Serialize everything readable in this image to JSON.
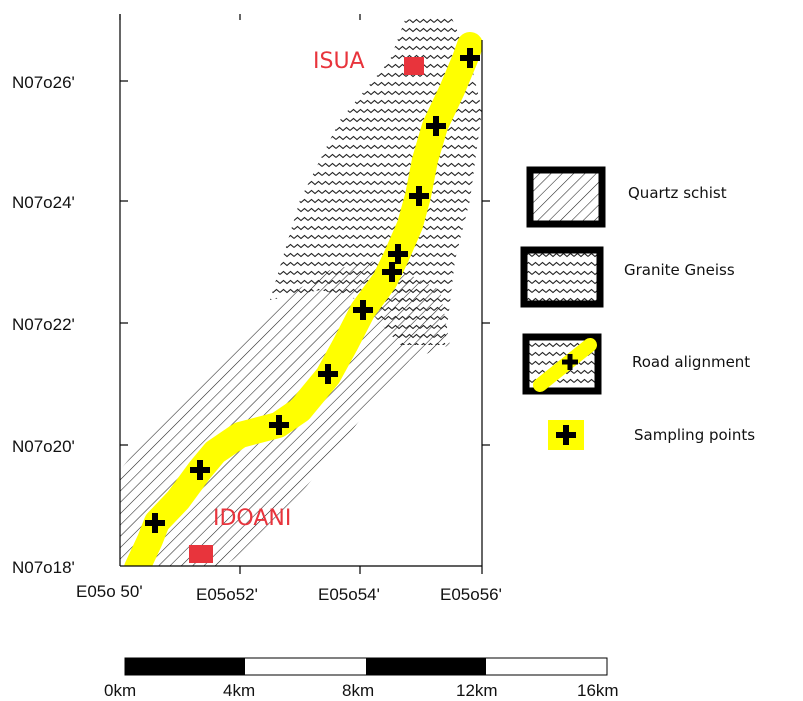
{
  "map": {
    "y_ticks": [
      "N07o26'",
      "N07o24'",
      "N07o22'",
      "N07o20'",
      "N07o18'"
    ],
    "x_ticks": [
      "E05o 50'",
      "E05o52'",
      "E05o54'",
      "E05o56'"
    ],
    "towns": {
      "north": "ISUA",
      "south": "IDOANI"
    }
  },
  "legend": {
    "quartz": "Quartz schist",
    "granite": "Granite Gneiss",
    "road": "Road alignment",
    "sampling": "Sampling points"
  },
  "scale_bar": {
    "labels": [
      "0km",
      "4km",
      "8km",
      "12km",
      "16km"
    ]
  },
  "colors": {
    "road": "#ffff00",
    "town": "#e8343c",
    "pattern": "#222222"
  }
}
